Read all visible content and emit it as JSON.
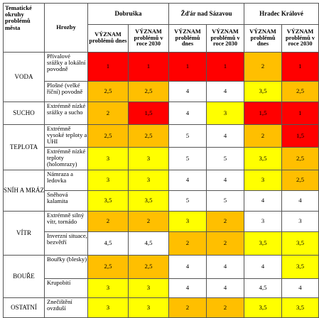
{
  "headers": {
    "topics": "Tematické okruhy problémů města",
    "threats": "Hrozby",
    "cities": [
      "Dobruška",
      "Žďár nad Sázavou",
      "Hradec Králové"
    ],
    "importance_now": "VÝZNAM problémů dnes",
    "importance_2030": "VÝZNAM problémů v roce 2030"
  },
  "colors": {
    "red": "#ff0000",
    "orange": "#ffbf00",
    "yellow": "#ffff00",
    "white": "#ffffff"
  },
  "groups": [
    {
      "topic": "VODA",
      "rows": [
        {
          "threat": "Přívalové srážky a lokální povodně",
          "values": [
            "1",
            "1",
            "1",
            "1",
            "2",
            "1"
          ],
          "fills": [
            "red",
            "red",
            "red",
            "red",
            "orange",
            "red"
          ]
        },
        {
          "threat": "Plošné (velké říční) povodně",
          "values": [
            "2,5",
            "2,5",
            "4",
            "4",
            "3,5",
            "2,5"
          ],
          "fills": [
            "orange",
            "orange",
            "white",
            "white",
            "yellow",
            "orange"
          ]
        }
      ]
    },
    {
      "topic": "SUCHO",
      "rows": [
        {
          "threat": "Extrémně nízké srážky a sucho",
          "values": [
            "2",
            "1,5",
            "4",
            "3",
            "1,5",
            "1"
          ],
          "fills": [
            "orange",
            "red",
            "white",
            "yellow",
            "red",
            "red"
          ]
        }
      ]
    },
    {
      "topic": "TEPLOTA",
      "rows": [
        {
          "threat": "Extrémně vysoké teploty a UHI",
          "values": [
            "2,5",
            "2,5",
            "5",
            "4",
            "2",
            "1,5"
          ],
          "fills": [
            "orange",
            "orange",
            "white",
            "white",
            "orange",
            "red"
          ]
        },
        {
          "threat": "Extrémně nízké teploty (holomrazy)",
          "values": [
            "3",
            "3",
            "5",
            "5",
            "3,5",
            "2,5"
          ],
          "fills": [
            "yellow",
            "yellow",
            "white",
            "white",
            "yellow",
            "orange"
          ]
        }
      ]
    },
    {
      "topic": "SNÍH A MRÁZ",
      "rows": [
        {
          "threat": "Námraza a ledovka",
          "values": [
            "3",
            "3",
            "4",
            "4",
            "3",
            "2,5"
          ],
          "fills": [
            "yellow",
            "yellow",
            "white",
            "white",
            "yellow",
            "orange"
          ]
        },
        {
          "threat": "Sněhová kalamita",
          "values": [
            "3,5",
            "3,5",
            "5",
            "5",
            "4",
            "4"
          ],
          "fills": [
            "yellow",
            "yellow",
            "white",
            "white",
            "white",
            "white"
          ]
        }
      ]
    },
    {
      "topic": "VÍTR",
      "rows": [
        {
          "threat": "Extrémně silný vítr, tornádo",
          "values": [
            "2",
            "2",
            "3",
            "2",
            "3",
            "3"
          ],
          "fills": [
            "orange",
            "orange",
            "yellow",
            "orange",
            "white",
            "white"
          ]
        },
        {
          "threat": "Inverzní situace, bezvětří",
          "values": [
            "4,5",
            "4,5",
            "2",
            "2",
            "3,5",
            "3,5"
          ],
          "fills": [
            "white",
            "white",
            "orange",
            "orange",
            "yellow",
            "yellow"
          ]
        }
      ]
    },
    {
      "topic": "BOUŘE",
      "rows": [
        {
          "threat": "Bouřky (blesky)",
          "values": [
            "2,5",
            "2,5",
            "4",
            "4",
            "4",
            "3,5"
          ],
          "fills": [
            "orange",
            "orange",
            "white",
            "white",
            "white",
            "yellow"
          ]
        },
        {
          "threat": "Krupobití",
          "values": [
            "3",
            "3",
            "4",
            "4",
            "4,5",
            "4"
          ],
          "fills": [
            "yellow",
            "yellow",
            "white",
            "white",
            "white",
            "white"
          ]
        }
      ]
    },
    {
      "topic": "OSTATNÍ",
      "rows": [
        {
          "threat": "Znečištění ovzduší",
          "values": [
            "3",
            "3",
            "2",
            "2",
            "3,5",
            "3,5"
          ],
          "fills": [
            "yellow",
            "yellow",
            "orange",
            "orange",
            "yellow",
            "yellow"
          ]
        }
      ]
    }
  ]
}
